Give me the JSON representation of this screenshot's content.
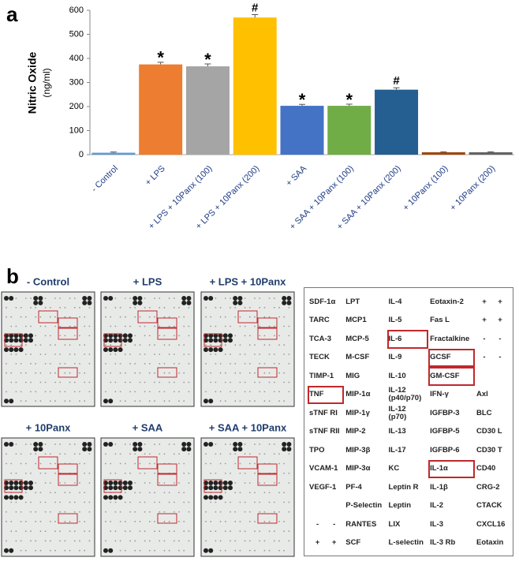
{
  "labels": [
    "a",
    "b"
  ],
  "chart_data": {
    "type": "bar",
    "y_label": "Nitric Oxide",
    "y_unit": "(ng/ml)",
    "categories": [
      "- Control",
      "+ LPS",
      "+ LPS + 10Panx (100)",
      "+ LPS + 10Panx (200)",
      "+ SAA",
      "+ SAA + 10Panx (100)",
      "+ SAA + 10Panx (200)",
      "+ 10Panx (100)",
      "+ 10Panx (200)"
    ],
    "values": [
      8,
      375,
      367,
      570,
      203,
      203,
      270,
      10,
      10
    ],
    "errors": [
      3,
      9,
      10,
      12,
      6,
      7,
      8,
      2,
      2
    ],
    "annotations": [
      null,
      "*",
      "*",
      "#",
      "*",
      "*",
      "#",
      null,
      null
    ],
    "colors": [
      "#5b9bd5",
      "#ed7d31",
      "#a5a5a5",
      "#ffc000",
      "#4472c4",
      "#70ad47",
      "#255e91",
      "#9e480e",
      "#636363"
    ],
    "ylim": [
      0,
      600
    ],
    "yticks": [
      0,
      100,
      200,
      300,
      400,
      500,
      600
    ],
    "grid": false
  },
  "blots": [
    {
      "title": "- Control"
    },
    {
      "title": "+ LPS"
    },
    {
      "title": "+ LPS + 10Panx"
    },
    {
      "title": "+ 10Panx"
    },
    {
      "title": "+ SAA"
    },
    {
      "title": "+ SAA + 10Panx"
    }
  ],
  "table": {
    "rows": [
      [
        "SDF-1α",
        "LPT",
        "IL-4",
        "Eotaxin-2",
        [
          "+",
          "+"
        ]
      ],
      [
        "TARC",
        "MCP1",
        "IL-5",
        "Fas L",
        [
          "+",
          "+"
        ]
      ],
      [
        "TCA-3",
        "MCP-5",
        "IL-6",
        "Fractalkine",
        [
          "-",
          "-"
        ]
      ],
      [
        "TECK",
        "M-CSF",
        "IL-9",
        "GCSF",
        [
          "-",
          "-"
        ]
      ],
      [
        "TIMP-1",
        "MIG",
        "IL-10",
        "GM-CSF",
        null
      ],
      [
        "TNF",
        "MIP-1α",
        "IL-12\n(p40/p70)",
        "IFN-γ",
        "Axl"
      ],
      [
        "sTNF RI",
        "MIP-1γ",
        "IL-12\n(p70)",
        "IGFBP-3",
        "BLC"
      ],
      [
        "sTNF RII",
        "MIP-2",
        "IL-13",
        "IGFBP-5",
        "CD30 L"
      ],
      [
        "TPO",
        "MIP-3β",
        "IL-17",
        "IGFBP-6",
        "CD30 T"
      ],
      [
        "VCAM-1",
        "MIP-3α",
        "KC",
        "IL-1α",
        "CD40"
      ],
      [
        "VEGF-1",
        "PF-4",
        "Leptin R",
        "IL-1β",
        "CRG-2"
      ],
      [
        null,
        "P-Selectin",
        "Leptin",
        "IL-2",
        "CTACK"
      ],
      [
        [
          "-",
          "-"
        ],
        "RANTES",
        "LIX",
        "IL-3",
        "CXCL16"
      ],
      [
        [
          "+",
          "+"
        ],
        "SCF",
        "L-selectin",
        "IL-3 Rb",
        "Eotaxin"
      ]
    ],
    "highlighted": [
      "IL-6",
      "GCSF",
      "GM-CSF",
      "TNF",
      "IL-1α"
    ]
  }
}
